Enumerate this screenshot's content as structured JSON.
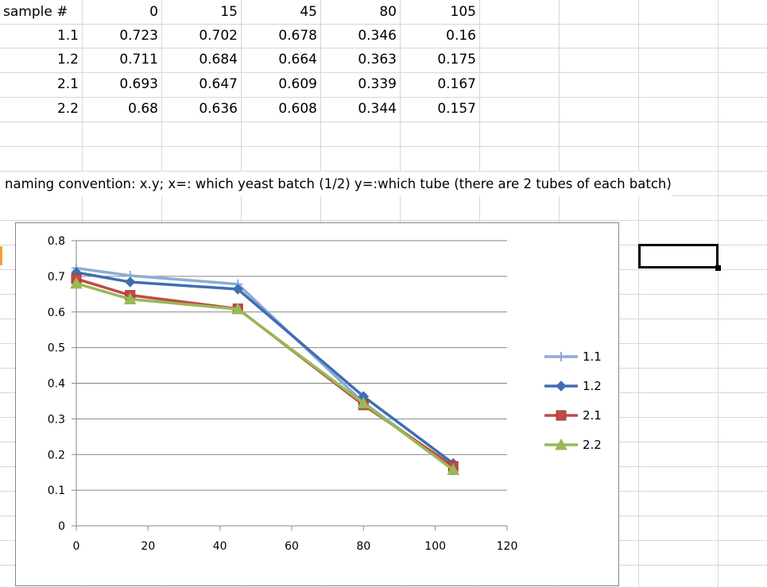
{
  "table": {
    "header": {
      "label": "sample #",
      "times": [
        "0",
        "15",
        "45",
        "80",
        "105"
      ]
    },
    "rows": [
      {
        "sample": "1.1",
        "values": [
          "0.723",
          "0.702",
          "0.678",
          "0.346",
          "0.16"
        ]
      },
      {
        "sample": "1.2",
        "values": [
          "0.711",
          "0.684",
          "0.664",
          "0.363",
          "0.175"
        ]
      },
      {
        "sample": "2.1",
        "values": [
          "0.693",
          "0.647",
          "0.609",
          "0.339",
          "0.167"
        ]
      },
      {
        "sample": "2.2",
        "values": [
          "0.68",
          "0.636",
          "0.608",
          "0.344",
          "0.157"
        ]
      }
    ]
  },
  "note": "naming convention: x.y; x=: which yeast batch (1/2) y=:which tube (there are 2 tubes of each batch)",
  "chart_data": {
    "type": "line",
    "x": [
      0,
      15,
      45,
      80,
      105
    ],
    "xlim": [
      0,
      120
    ],
    "ylim": [
      0,
      0.8
    ],
    "xticks": [
      "0",
      "20",
      "40",
      "60",
      "80",
      "100",
      "120"
    ],
    "yticks": [
      "0",
      "0.1",
      "0.2",
      "0.3",
      "0.4",
      "0.5",
      "0.6",
      "0.7",
      "0.8"
    ],
    "grid": "horizontal major gridlines",
    "legend_position": "right",
    "series": [
      {
        "name": "1.1",
        "values": [
          0.723,
          0.702,
          0.678,
          0.346,
          0.16
        ],
        "color": "#8eaad8",
        "marker": "plus"
      },
      {
        "name": "1.2",
        "values": [
          0.711,
          0.684,
          0.664,
          0.363,
          0.175
        ],
        "color": "#3f6eb2",
        "marker": "diamond"
      },
      {
        "name": "2.1",
        "values": [
          0.693,
          0.647,
          0.609,
          0.339,
          0.167
        ],
        "color": "#be4b48",
        "marker": "square"
      },
      {
        "name": "2.2",
        "values": [
          0.68,
          0.636,
          0.608,
          0.344,
          0.157
        ],
        "color": "#98b954",
        "marker": "triangle"
      }
    ]
  }
}
